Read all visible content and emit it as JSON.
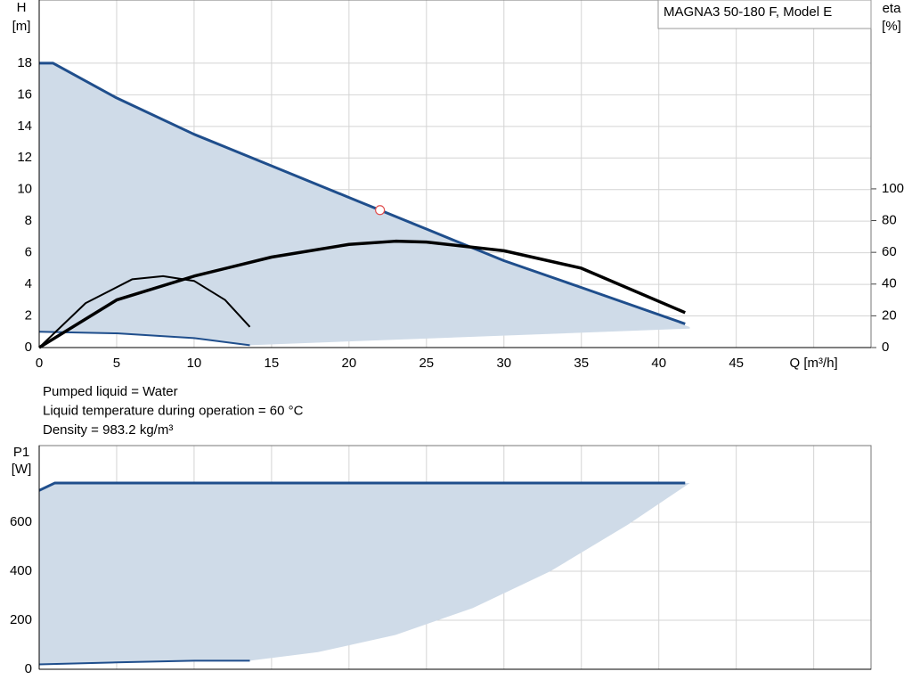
{
  "chart_data": [
    {
      "type": "line",
      "legend_box": "MAGNA3 50-180 F, Model E",
      "y_label": "H",
      "y_unit": "[m]",
      "y2_label": "eta",
      "y2_unit": "[%]",
      "xlim": [
        0,
        53.7
      ],
      "ylim": [
        0,
        22
      ],
      "y2lim": [
        0,
        219
      ],
      "xticks": [
        0,
        5,
        10,
        15,
        20,
        25,
        30,
        35,
        40,
        45,
        {
          "value": 50,
          "label": "Q [m³/h]"
        }
      ],
      "yticks": [
        0,
        2,
        4,
        6,
        8,
        10,
        12,
        14,
        16,
        18
      ],
      "y2ticks": [
        0,
        20,
        40,
        60,
        80,
        100
      ],
      "grid": true,
      "region": {
        "color": "#cfdbe8",
        "x": [
          0,
          0.9,
          5,
          10,
          15,
          20,
          25,
          30,
          35,
          42,
          42,
          13.6,
          10,
          5,
          0
        ],
        "values": [
          18,
          18,
          15.8,
          13.5,
          11.5,
          9.5,
          7.5,
          5.5,
          3.8,
          1.3,
          1.2,
          0.15,
          0.6,
          0.9,
          1
        ]
      },
      "series": [
        {
          "color": "#1f4e8c",
          "width": 3,
          "x": [
            0,
            0.9,
            5,
            10,
            15,
            20,
            25,
            30,
            35,
            41.7
          ],
          "values": [
            18,
            18,
            15.8,
            13.5,
            11.5,
            9.5,
            7.5,
            5.5,
            3.8,
            1.5
          ]
        },
        {
          "color": "#1f4e8c",
          "width": 2,
          "x": [
            0,
            5,
            10,
            13.6
          ],
          "values": [
            1,
            0.9,
            0.6,
            0.15
          ]
        },
        {
          "color": "#000000",
          "width": 3.5,
          "axis": "y2",
          "x": [
            0,
            5,
            10,
            15,
            20,
            23,
            25,
            30,
            35,
            41.7
          ],
          "values": [
            0,
            30,
            45,
            57,
            65,
            67,
            66.5,
            61,
            50,
            22
          ]
        },
        {
          "color": "#000000",
          "width": 2,
          "axis": "y2",
          "x": [
            0,
            3,
            6,
            8,
            10,
            12,
            13.6
          ],
          "values": [
            0,
            28,
            43,
            45,
            42,
            30,
            13
          ]
        }
      ],
      "points": {
        "color": "#e05050",
        "x": [
          22
        ],
        "values": [
          8.7
        ]
      },
      "notes": [
        "Pumped liquid = Water",
        "Liquid temperature during operation = 60 °C",
        "Density = 983.2 kg/m³"
      ]
    },
    {
      "type": "line",
      "y_label": "P1",
      "y_unit": "[W]",
      "xlim": [
        0,
        53.7
      ],
      "ylim": [
        0,
        913
      ],
      "xticks": [
        0,
        5,
        10,
        15,
        20,
        25,
        30,
        35,
        40,
        45,
        50
      ],
      "yticks": [
        0,
        200,
        400,
        600
      ],
      "grid": true,
      "region": {
        "color": "#cfdbe8",
        "x": [
          0,
          1,
          42,
          38,
          33,
          28,
          23,
          18,
          13.6,
          10,
          5,
          0
        ],
        "values": [
          730,
          760,
          760,
          590,
          400,
          250,
          140,
          70,
          35,
          35,
          28,
          20
        ]
      },
      "series": [
        {
          "color": "#1f4e8c",
          "width": 3,
          "x": [
            0,
            1,
            41.7
          ],
          "values": [
            730,
            760,
            760
          ]
        },
        {
          "color": "#1f4e8c",
          "width": 2,
          "x": [
            0,
            5,
            10,
            13.6
          ],
          "values": [
            20,
            28,
            35,
            35
          ]
        }
      ]
    }
  ]
}
